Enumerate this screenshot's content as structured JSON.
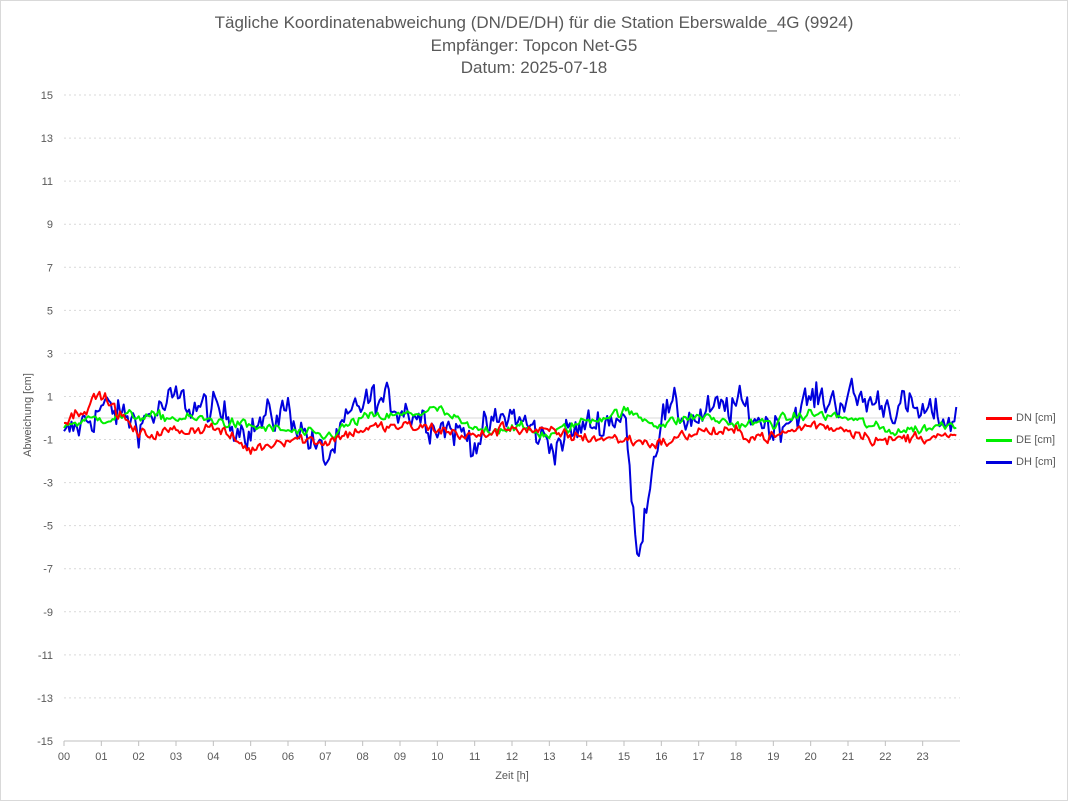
{
  "chart_data": {
    "type": "line",
    "title": "Tägliche Koordinatenabweichung (DN/DE/DH) für die Station Eberswalde_4G (9924)",
    "subtitle1": "Empfänger: Topcon Net-G5",
    "subtitle2": "Datum: 2025-07-18",
    "xlabel": "Zeit [h]",
    "ylabel": "Abweichung [cm]",
    "xlim": [
      0,
      24
    ],
    "ylim": [
      -15,
      15
    ],
    "yticks": [
      15,
      13,
      11,
      9,
      7,
      5,
      3,
      1,
      -1,
      -3,
      -5,
      -7,
      -9,
      -11,
      -13,
      -15
    ],
    "xtick_labels": [
      "00",
      "01",
      "02",
      "03",
      "04",
      "05",
      "06",
      "07",
      "08",
      "09",
      "10",
      "11",
      "12",
      "13",
      "14",
      "15",
      "16",
      "17",
      "18",
      "19",
      "20",
      "21",
      "22",
      "23"
    ],
    "grid": true,
    "legend_position": "right",
    "series": [
      {
        "name": "DN [cm]",
        "color": "#ff0000",
        "x": [
          0,
          1,
          2,
          3,
          4,
          5,
          6,
          7,
          8,
          9,
          10,
          11,
          12,
          13,
          14,
          15,
          16,
          17,
          18,
          19,
          20,
          21,
          22,
          23,
          23.9
        ],
        "values": [
          -0.2,
          1.1,
          -0.8,
          -0.6,
          -0.4,
          -1.5,
          -0.9,
          -1.1,
          -0.5,
          -0.4,
          -0.5,
          -0.9,
          -0.4,
          -0.7,
          -0.9,
          -1.0,
          -1.2,
          -0.6,
          -0.7,
          -0.9,
          -0.3,
          -0.5,
          -1.1,
          -0.8,
          -1.0
        ]
      },
      {
        "name": "DE [cm]",
        "color": "#00ee00",
        "x": [
          0,
          1,
          2,
          3,
          4,
          5,
          6,
          7,
          8,
          9,
          10,
          11,
          12,
          13,
          14,
          15,
          16,
          17,
          18,
          19,
          20,
          21,
          22,
          23,
          23.9
        ],
        "values": [
          -0.3,
          0.0,
          0.1,
          0.0,
          -0.1,
          -0.4,
          -0.6,
          -0.9,
          0.0,
          0.1,
          0.4,
          -0.6,
          -0.4,
          -0.8,
          -0.1,
          0.3,
          -0.3,
          0.1,
          -0.3,
          -0.2,
          0.2,
          0.0,
          -0.6,
          -0.5,
          -0.2
        ]
      },
      {
        "name": "DH [cm]",
        "color": "#0000dd",
        "x": [
          0,
          1,
          2,
          3,
          4,
          5,
          6,
          7,
          8,
          9,
          10,
          11,
          12,
          13,
          14,
          15,
          15.35,
          16,
          17,
          18,
          19,
          20,
          21,
          22,
          23,
          23.9
        ],
        "values": [
          -1.0,
          0.5,
          -0.2,
          0.8,
          0.3,
          -0.5,
          0.4,
          -2.0,
          0.8,
          0.6,
          -0.2,
          -1.0,
          0.2,
          -1.2,
          -0.4,
          0.2,
          -6.3,
          0.3,
          0.0,
          0.6,
          -0.4,
          0.8,
          0.9,
          0.7,
          0.2,
          -0.1
        ]
      }
    ]
  }
}
